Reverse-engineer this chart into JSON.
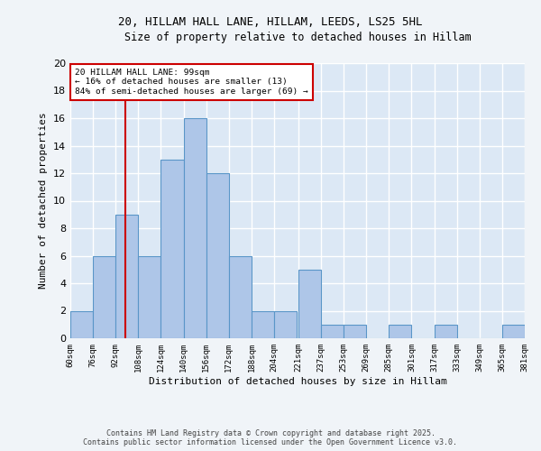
{
  "title1": "20, HILLAM HALL LANE, HILLAM, LEEDS, LS25 5HL",
  "title2": "Size of property relative to detached houses in Hillam",
  "xlabel": "Distribution of detached houses by size in Hillam",
  "ylabel": "Number of detached properties",
  "bins": [
    60,
    76,
    92,
    108,
    124,
    140,
    156,
    172,
    188,
    204,
    221,
    237,
    253,
    269,
    285,
    301,
    317,
    333,
    349,
    365,
    381
  ],
  "bin_labels": [
    "60sqm",
    "76sqm",
    "92sqm",
    "108sqm",
    "124sqm",
    "140sqm",
    "156sqm",
    "172sqm",
    "188sqm",
    "204sqm",
    "221sqm",
    "237sqm",
    "253sqm",
    "269sqm",
    "285sqm",
    "301sqm",
    "317sqm",
    "333sqm",
    "349sqm",
    "365sqm",
    "381sqm"
  ],
  "counts": [
    2,
    6,
    9,
    6,
    13,
    16,
    12,
    6,
    2,
    2,
    5,
    1,
    1,
    0,
    1,
    0,
    1,
    0,
    0,
    1
  ],
  "bar_color": "#aec6e8",
  "bar_edge_color": "#5a96c8",
  "red_line_x": 99,
  "annotation_text": "20 HILLAM HALL LANE: 99sqm\n← 16% of detached houses are smaller (13)\n84% of semi-detached houses are larger (69) →",
  "annotation_box_color": "#ffffff",
  "annotation_box_edge": "#cc0000",
  "red_line_color": "#cc0000",
  "yticks": [
    0,
    2,
    4,
    6,
    8,
    10,
    12,
    14,
    16,
    18,
    20
  ],
  "ymax": 20,
  "bg_color": "#dce8f5",
  "fig_bg_color": "#f0f4f8",
  "grid_color": "#ffffff",
  "footer1": "Contains HM Land Registry data © Crown copyright and database right 2025.",
  "footer2": "Contains public sector information licensed under the Open Government Licence v3.0."
}
